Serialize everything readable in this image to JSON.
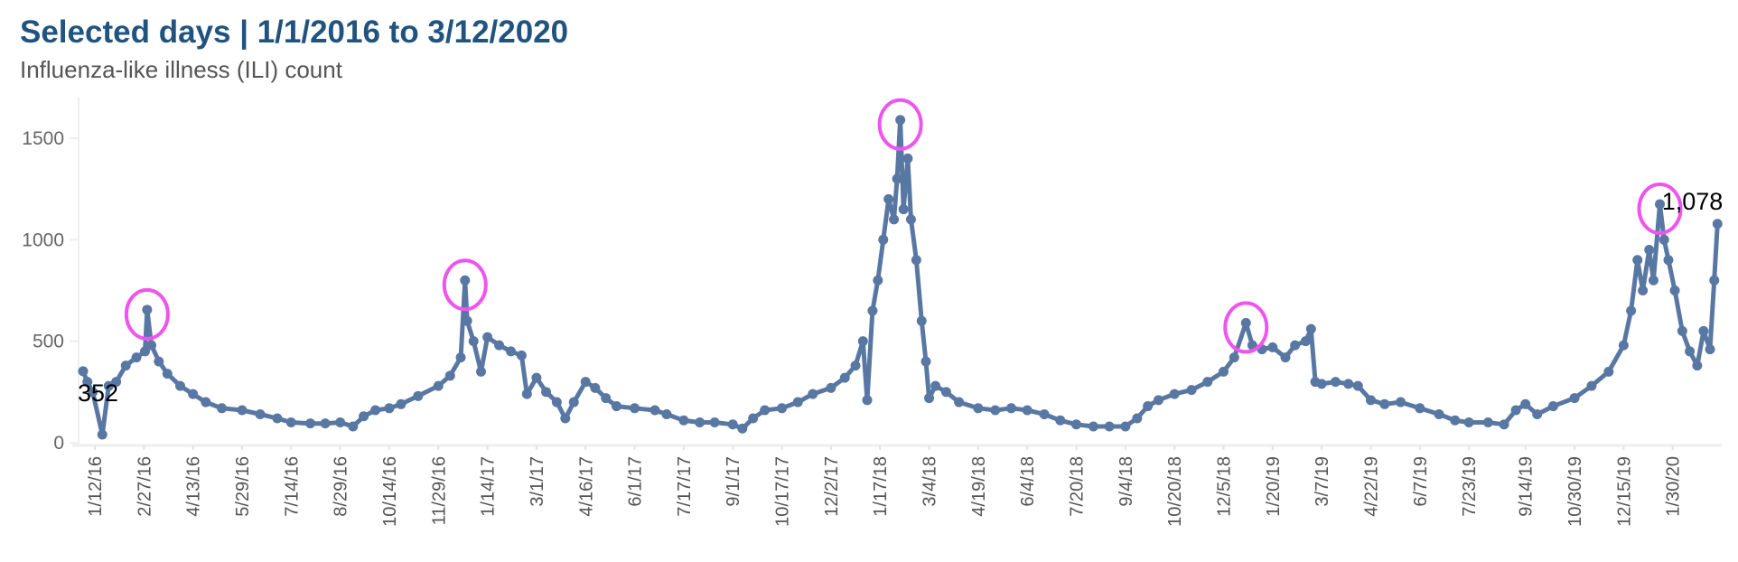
{
  "chart_data": {
    "type": "line",
    "title": "Selected days | 1/1/2016 to 3/12/2020",
    "subtitle": "Influenza-like illness (ILI) count",
    "xlabel": "",
    "ylabel": "",
    "ylim": [
      0,
      1700
    ],
    "yticks": [
      0,
      500,
      1000,
      1500
    ],
    "grid": false,
    "xtick_labels": [
      "1/12/16",
      "2/27/16",
      "4/13/16",
      "5/29/16",
      "7/14/16",
      "8/29/16",
      "10/14/16",
      "11/29/16",
      "1/14/17",
      "3/1/17",
      "4/16/17",
      "6/1/17",
      "7/17/17",
      "9/1/17",
      "10/17/17",
      "12/2/17",
      "1/17/18",
      "3/4/18",
      "4/19/18",
      "6/4/18",
      "7/20/18",
      "9/4/18",
      "10/20/18",
      "12/5/18",
      "1/20/19",
      "3/7/19",
      "4/22/19",
      "6/7/19",
      "7/23/19",
      "9/14/19",
      "10/30/19",
      "12/15/19",
      "1/30/20"
    ],
    "line_color": "#5878a3",
    "highlight_color": "#ee55ee",
    "highlighted_dates": [
      "3/1/2016",
      "12/24/2016",
      "2/5/2018",
      "12/26/2018",
      "1/18/2020"
    ],
    "data_labels": [
      {
        "date": "1/1/2016",
        "text": "352"
      },
      {
        "date": "3/12/2020",
        "text": "1,078"
      }
    ],
    "points": [
      [
        "1/1/2016",
        352
      ],
      [
        "1/5/2016",
        300
      ],
      [
        "1/10/2016",
        250
      ],
      [
        "1/19/2016",
        40
      ],
      [
        "1/25/2016",
        280
      ],
      [
        "2/1/2016",
        300
      ],
      [
        "2/10/2016",
        380
      ],
      [
        "2/20/2016",
        420
      ],
      [
        "2/28/2016",
        450
      ],
      [
        "3/1/2016",
        655
      ],
      [
        "3/5/2016",
        480
      ],
      [
        "3/12/2016",
        400
      ],
      [
        "3/20/2016",
        340
      ],
      [
        "4/1/2016",
        280
      ],
      [
        "4/13/2016",
        240
      ],
      [
        "4/25/2016",
        200
      ],
      [
        "5/10/2016",
        170
      ],
      [
        "5/29/2016",
        160
      ],
      [
        "6/15/2016",
        140
      ],
      [
        "7/1/2016",
        120
      ],
      [
        "7/14/2016",
        100
      ],
      [
        "8/1/2016",
        95
      ],
      [
        "8/15/2016",
        95
      ],
      [
        "8/29/2016",
        100
      ],
      [
        "9/10/2016",
        80
      ],
      [
        "9/20/2016",
        130
      ],
      [
        "10/1/2016",
        160
      ],
      [
        "10/14/2016",
        170
      ],
      [
        "10/25/2016",
        190
      ],
      [
        "11/10/2016",
        230
      ],
      [
        "11/29/2016",
        280
      ],
      [
        "12/10/2016",
        330
      ],
      [
        "12/20/2016",
        420
      ],
      [
        "12/24/2016",
        800
      ],
      [
        "12/26/2016",
        600
      ],
      [
        "1/1/2017",
        500
      ],
      [
        "1/8/2017",
        350
      ],
      [
        "1/14/2017",
        520
      ],
      [
        "1/25/2017",
        480
      ],
      [
        "2/5/2017",
        450
      ],
      [
        "2/15/2017",
        430
      ],
      [
        "2/20/2017",
        240
      ],
      [
        "3/1/2017",
        320
      ],
      [
        "3/10/2017",
        250
      ],
      [
        "3/20/2017",
        200
      ],
      [
        "3/28/2017",
        120
      ],
      [
        "4/5/2017",
        200
      ],
      [
        "4/16/2017",
        300
      ],
      [
        "4/25/2017",
        270
      ],
      [
        "5/5/2017",
        220
      ],
      [
        "5/15/2017",
        180
      ],
      [
        "6/1/2017",
        170
      ],
      [
        "6/20/2017",
        160
      ],
      [
        "7/1/2017",
        140
      ],
      [
        "7/17/2017",
        110
      ],
      [
        "8/1/2017",
        100
      ],
      [
        "8/15/2017",
        100
      ],
      [
        "9/1/2017",
        90
      ],
      [
        "9/10/2017",
        70
      ],
      [
        "9/20/2017",
        120
      ],
      [
        "10/1/2017",
        160
      ],
      [
        "10/17/2017",
        170
      ],
      [
        "11/1/2017",
        200
      ],
      [
        "11/15/2017",
        240
      ],
      [
        "12/2/2017",
        270
      ],
      [
        "12/15/2017",
        320
      ],
      [
        "12/25/2017",
        380
      ],
      [
        "1/1/2018",
        500
      ],
      [
        "1/5/2018",
        210
      ],
      [
        "1/10/2018",
        650
      ],
      [
        "1/15/2018",
        800
      ],
      [
        "1/20/2018",
        1000
      ],
      [
        "1/25/2018",
        1200
      ],
      [
        "1/30/2018",
        1100
      ],
      [
        "2/2/2018",
        1300
      ],
      [
        "2/5/2018",
        1590
      ],
      [
        "2/8/2018",
        1150
      ],
      [
        "2/12/2018",
        1400
      ],
      [
        "2/15/2018",
        1100
      ],
      [
        "2/20/2018",
        900
      ],
      [
        "2/25/2018",
        600
      ],
      [
        "3/1/2018",
        400
      ],
      [
        "3/4/2018",
        220
      ],
      [
        "3/10/2018",
        280
      ],
      [
        "3/20/2018",
        250
      ],
      [
        "4/1/2018",
        200
      ],
      [
        "4/19/2018",
        170
      ],
      [
        "5/5/2018",
        160
      ],
      [
        "5/20/2018",
        170
      ],
      [
        "6/4/2018",
        160
      ],
      [
        "6/20/2018",
        140
      ],
      [
        "7/5/2018",
        110
      ],
      [
        "7/20/2018",
        90
      ],
      [
        "8/5/2018",
        80
      ],
      [
        "8/20/2018",
        80
      ],
      [
        "9/4/2018",
        80
      ],
      [
        "9/15/2018",
        120
      ],
      [
        "9/25/2018",
        180
      ],
      [
        "10/5/2018",
        210
      ],
      [
        "10/20/2018",
        240
      ],
      [
        "11/5/2018",
        260
      ],
      [
        "11/20/2018",
        300
      ],
      [
        "12/5/2018",
        350
      ],
      [
        "12/15/2018",
        420
      ],
      [
        "12/26/2018",
        590
      ],
      [
        "1/1/2019",
        480
      ],
      [
        "1/10/2019",
        460
      ],
      [
        "1/20/2019",
        470
      ],
      [
        "2/1/2019",
        420
      ],
      [
        "2/10/2019",
        480
      ],
      [
        "2/20/2019",
        500
      ],
      [
        "2/25/2019",
        560
      ],
      [
        "3/1/2019",
        300
      ],
      [
        "3/7/2019",
        290
      ],
      [
        "3/20/2019",
        300
      ],
      [
        "4/1/2019",
        290
      ],
      [
        "4/10/2019",
        280
      ],
      [
        "4/22/2019",
        210
      ],
      [
        "5/5/2019",
        190
      ],
      [
        "5/20/2019",
        200
      ],
      [
        "6/7/2019",
        170
      ],
      [
        "6/25/2019",
        140
      ],
      [
        "7/10/2019",
        110
      ],
      [
        "7/23/2019",
        100
      ],
      [
        "8/10/2019",
        100
      ],
      [
        "8/25/2019",
        90
      ],
      [
        "9/5/2019",
        160
      ],
      [
        "9/14/2019",
        190
      ],
      [
        "9/25/2019",
        140
      ],
      [
        "10/10/2019",
        180
      ],
      [
        "10/30/2019",
        220
      ],
      [
        "11/15/2019",
        280
      ],
      [
        "12/1/2019",
        350
      ],
      [
        "12/15/2019",
        480
      ],
      [
        "12/22/2019",
        650
      ],
      [
        "12/28/2019",
        900
      ],
      [
        "1/2/2020",
        750
      ],
      [
        "1/8/2020",
        950
      ],
      [
        "1/12/2020",
        800
      ],
      [
        "1/18/2020",
        1175
      ],
      [
        "1/22/2020",
        1000
      ],
      [
        "1/26/2020",
        900
      ],
      [
        "2/1/2020",
        750
      ],
      [
        "2/8/2020",
        550
      ],
      [
        "2/15/2020",
        450
      ],
      [
        "2/22/2020",
        380
      ],
      [
        "2/28/2020",
        550
      ],
      [
        "3/5/2020",
        460
      ],
      [
        "3/9/2020",
        800
      ],
      [
        "3/12/2020",
        1078
      ]
    ]
  }
}
